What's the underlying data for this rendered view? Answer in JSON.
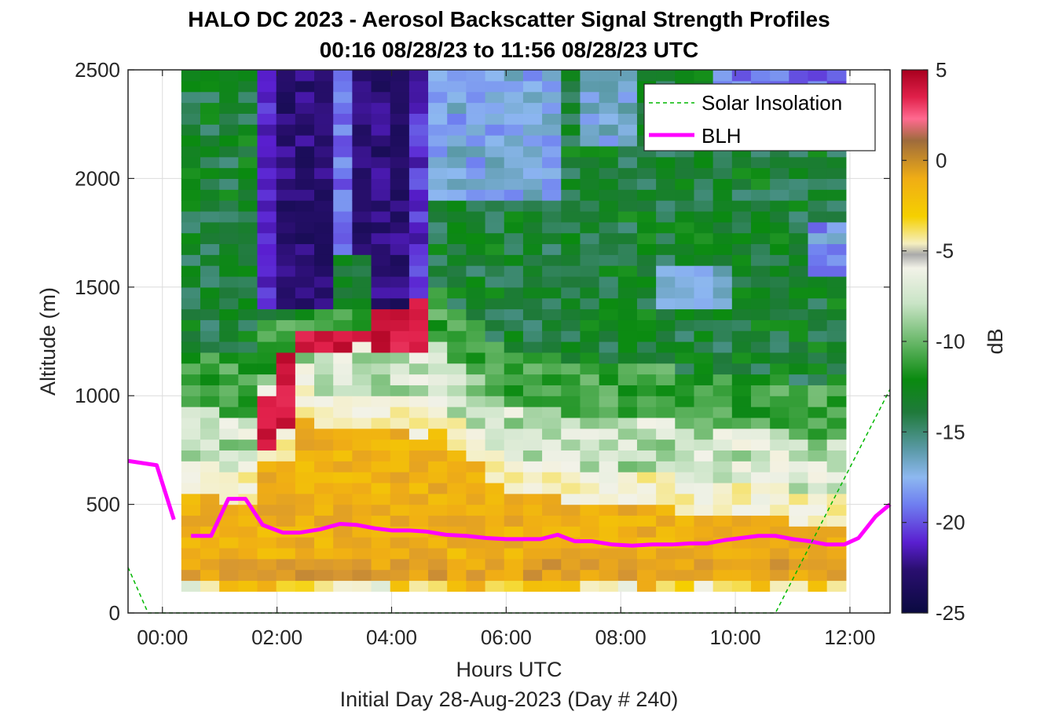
{
  "chart_data": {
    "type": "heatmap",
    "title_line1": "HALO DC 2023 - Aerosol Backscatter Signal Strength Profiles",
    "title_line2": "00:16 08/28/23 to 11:56 08/28/23  UTC",
    "xlabel": "Hours UTC",
    "xlabel2": "Initial Day 28-Aug-2023 (Day # 240)",
    "ylabel": "Altitude (m)",
    "xlim_hours": [
      -0.6,
      12.7
    ],
    "ylim": [
      0,
      2500
    ],
    "x_ticks": [
      {
        "value": 0,
        "label": "00:00"
      },
      {
        "value": 2,
        "label": "02:00"
      },
      {
        "value": 4,
        "label": "04:00"
      },
      {
        "value": 6,
        "label": "06:00"
      },
      {
        "value": 8,
        "label": "08:00"
      },
      {
        "value": 10,
        "label": "10:00"
      },
      {
        "value": 12,
        "label": "12:00"
      }
    ],
    "y_ticks": [
      {
        "value": 0,
        "label": "0"
      },
      {
        "value": 500,
        "label": "500"
      },
      {
        "value": 1000,
        "label": "1000"
      },
      {
        "value": 1500,
        "label": "1500"
      },
      {
        "value": 2000,
        "label": "2000"
      },
      {
        "value": 2500,
        "label": "2500"
      }
    ],
    "grid": true,
    "colorbar": {
      "label": "dB",
      "range": [
        -25,
        5
      ],
      "ticks": [
        {
          "value": 5,
          "label": "5"
        },
        {
          "value": 0,
          "label": "0"
        },
        {
          "value": -5,
          "label": "-5"
        },
        {
          "value": -10,
          "label": "-10"
        },
        {
          "value": -15,
          "label": "-15"
        },
        {
          "value": -20,
          "label": "-20"
        },
        {
          "value": -25,
          "label": "-25"
        }
      ]
    },
    "heatmap": {
      "x_start_hours": 0.33,
      "x_end_hours": 11.93,
      "y_start_m": 100,
      "y_end_m": 2500,
      "value_unit": "dB"
    },
    "legend": {
      "position": "top-right",
      "entries": [
        "Solar Insolation",
        "BLH"
      ]
    },
    "series": [
      {
        "name": "BLH",
        "color": "#ff00ff",
        "segments": [
          {
            "x": [
              -0.6,
              -0.1,
              0.2
            ],
            "y": [
              700,
              680,
              430
            ]
          },
          {
            "x": [
              0.5,
              0.85,
              1.15,
              1.45,
              1.75,
              2.1,
              2.4,
              2.75,
              3.1,
              3.4,
              3.7,
              4.0,
              4.3,
              4.6,
              4.95,
              5.3,
              5.65,
              6.0,
              6.3,
              6.6,
              6.9,
              7.2,
              7.5,
              7.85,
              8.2,
              8.55,
              8.9,
              9.2,
              9.5,
              9.8,
              10.1,
              10.4,
              10.7,
              11.0,
              11.3,
              11.6,
              11.9,
              12.15,
              12.45,
              12.7
            ],
            "y": [
              355,
              355,
              525,
              525,
              405,
              370,
              370,
              385,
              410,
              405,
              390,
              380,
              380,
              375,
              360,
              355,
              345,
              340,
              340,
              340,
              360,
              330,
              330,
              315,
              310,
              315,
              315,
              320,
              320,
              335,
              345,
              355,
              355,
              340,
              330,
              315,
              315,
              345,
              445,
              500
            ]
          }
        ]
      },
      {
        "name": "Solar Insolation",
        "color": "#00b800",
        "style": "dashed",
        "x": [
          -0.6,
          -0.25,
          10.7,
          12.7
        ],
        "y": [
          210,
          0,
          0,
          1030
        ]
      }
    ]
  }
}
